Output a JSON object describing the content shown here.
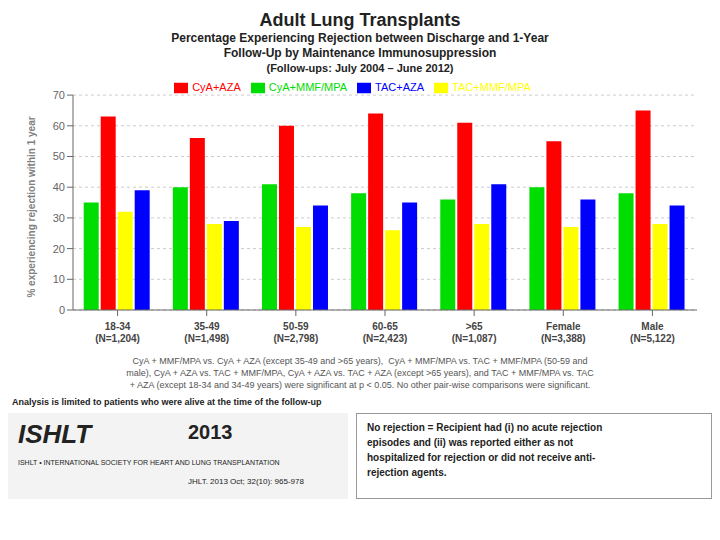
{
  "chart_data": {
    "type": "bar",
    "title": "Adult Lung Transplants",
    "subtitle": [
      "Percentage Experiencing Rejection between Discharge and 1-Year",
      "Follow-Up by Maintenance Immunosuppression",
      "(Follow-ups: July 2004 – June 2012)"
    ],
    "y_label": "% experiencing rejection within 1 year",
    "categories": [
      "18-34\n(N=1,204)",
      "35-49\n(N=1,498)",
      "50-59\n(N=2,798)",
      "60-65\n(N=2,423)",
      ">65\n(N=1,087)",
      "Female\n(N=3,388)",
      "Male\n(N=5,122)"
    ],
    "series": [
      {
        "name": "CyA+MMF/MPA",
        "color": "#00dd00",
        "values": [
          35,
          40,
          41,
          38,
          36,
          40,
          38
        ]
      },
      {
        "name": "CyA+AZA",
        "color": "#ff0000",
        "values": [
          63,
          56,
          60,
          64,
          61,
          55,
          65
        ]
      },
      {
        "name": "TAC+MMF/MPA",
        "color": "#ffff00",
        "values": [
          32,
          28,
          27,
          26,
          28,
          27,
          28
        ]
      },
      {
        "name": "TAC+AZA",
        "color": "#0000ff",
        "values": [
          39,
          29,
          34,
          35,
          41,
          36,
          34
        ]
      }
    ],
    "ylim": [
      0,
      70
    ],
    "yticks": [
      0,
      10,
      20,
      30,
      40,
      50,
      60,
      70
    ],
    "grid": true,
    "legend": "top",
    "annotations": [
      "CyA + MMF/MPA vs. CyA + AZA (except 35-49 and >65 years),  CyA + MMF/MPA vs. TAC + MMF/MPA (50-59 and",
      "male), CyA + AZA vs. TAC + MMF/MPA, CyA + AZA vs. TAC + AZA (except >65 years), and TAC + MMF/MPA vs. TAC",
      "+ AZA (except 18-34 and 34-49 years) were significant at p < 0.05. No other pair-wise comparisons were significant.",
      "Analysis is limited to patients who were alive at the time of the follow-up",
      "No rejection = Recipient had (i) no acute rejection\nepisodes and (ii) was reported either as not\nhospitalized for rejection or did not receive anti-\nrejection agents.",
      "ISHLT",
      "ISHLT • INTERNATIONAL SOCIETY FOR HEART AND LUNG TRANSPLANTATION",
      "2013",
      "JHLT. 2013 Oct; 32(10): 965-978"
    ]
  }
}
